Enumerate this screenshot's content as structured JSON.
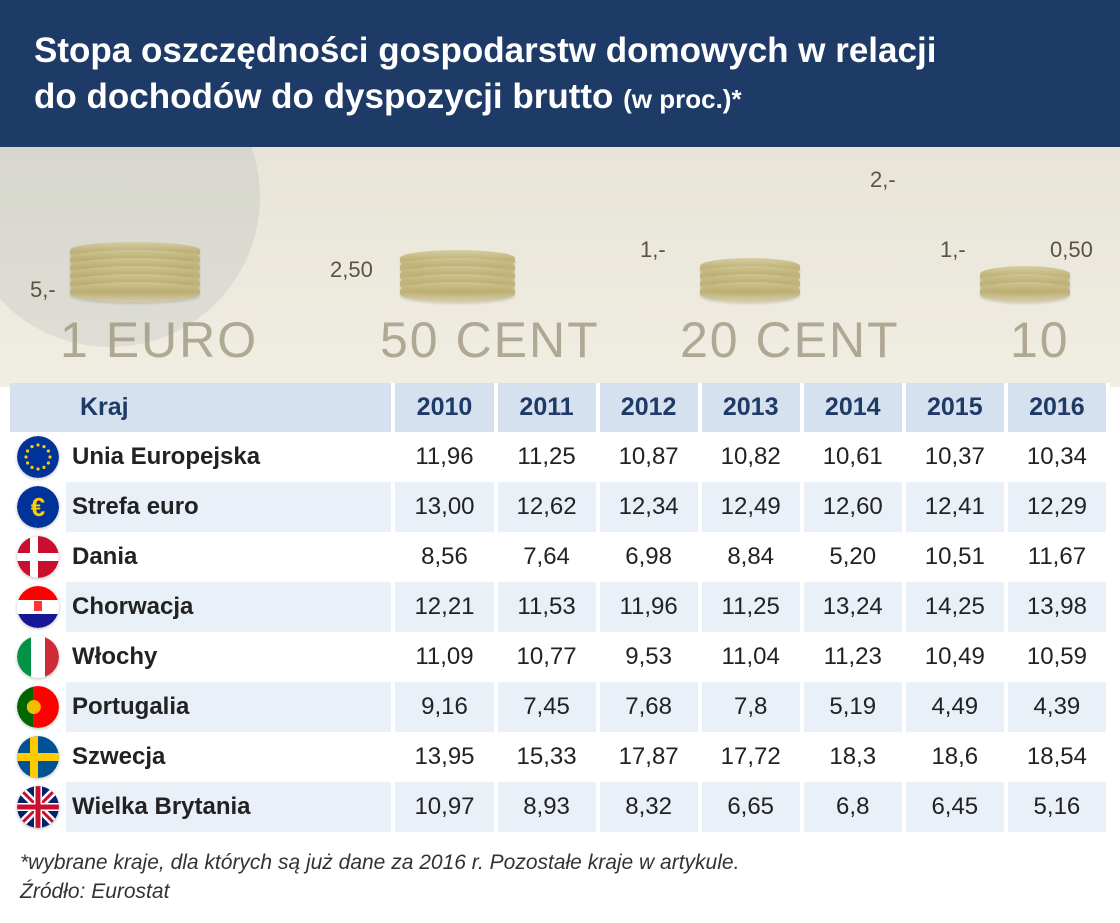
{
  "header": {
    "title_line1": "Stopa oszczędności gospodarstw domowych w relacji",
    "title_line2": "do dochodów do dyspozycji brutto",
    "subtitle": "(w proc.)*",
    "bg_color": "#1e3a66",
    "text_color": "#ffffff",
    "title_fontsize": 35
  },
  "banner": {
    "labels": [
      "1 EURO",
      "50 CENT",
      "20 CENT",
      "10"
    ],
    "scale_marks": [
      "5,-",
      "2,50",
      "1,-",
      "2,-",
      "1,-",
      "0,50"
    ],
    "coin_color": "#d4c99a",
    "bg_color": "#e8e4d8"
  },
  "table": {
    "header_bg": "#d6e1f0",
    "header_color": "#1e3a66",
    "row_even_bg": "#eaf0f8",
    "row_odd_bg": "#ffffff",
    "font_size": 24,
    "columns": [
      "Kraj",
      "2010",
      "2011",
      "2012",
      "2013",
      "2014",
      "2015",
      "2016"
    ],
    "rows": [
      {
        "flag": "eu",
        "name": "Unia Europejska",
        "values": [
          "11,96",
          "11,25",
          "10,87",
          "10,82",
          "10,61",
          "10,37",
          "10,34"
        ]
      },
      {
        "flag": "euro",
        "name": "Strefa euro",
        "values": [
          "13,00",
          "12,62",
          "12,34",
          "12,49",
          "12,60",
          "12,41",
          "12,29"
        ]
      },
      {
        "flag": "dk",
        "name": "Dania",
        "values": [
          "8,56",
          "7,64",
          "6,98",
          "8,84",
          "5,20",
          "10,51",
          "11,67"
        ]
      },
      {
        "flag": "hr",
        "name": "Chorwacja",
        "values": [
          "12,21",
          "11,53",
          "11,96",
          "11,25",
          "13,24",
          "14,25",
          "13,98"
        ]
      },
      {
        "flag": "it",
        "name": "Włochy",
        "values": [
          "11,09",
          "10,77",
          "9,53",
          "11,04",
          "11,23",
          "10,49",
          "10,59"
        ]
      },
      {
        "flag": "pt",
        "name": "Portugalia",
        "values": [
          "9,16",
          "7,45",
          "7,68",
          "7,8",
          "5,19",
          "4,49",
          "4,39"
        ]
      },
      {
        "flag": "se",
        "name": "Szwecja",
        "values": [
          "13,95",
          "15,33",
          "17,87",
          "17,72",
          "18,3",
          "18,6",
          "18,54"
        ]
      },
      {
        "flag": "gb",
        "name": "Wielka Brytania",
        "values": [
          "10,97",
          "8,93",
          "8,32",
          "6,65",
          "6,8",
          "6,45",
          "5,16"
        ]
      }
    ]
  },
  "flags": {
    "eu": {
      "bg": "#003399",
      "type": "eu"
    },
    "euro": {
      "bg": "#003399",
      "type": "euro"
    },
    "dk": {
      "bg": "#c8102e",
      "type": "nordic_cross",
      "cross": "#ffffff"
    },
    "hr": {
      "type": "tricolor_h",
      "c1": "#ff0000",
      "c2": "#ffffff",
      "c3": "#171796",
      "emblem": "#ff0000"
    },
    "it": {
      "type": "tricolor_v",
      "c1": "#009246",
      "c2": "#ffffff",
      "c3": "#ce2b37"
    },
    "pt": {
      "type": "bicolor_v",
      "c1": "#006600",
      "c2": "#ff0000",
      "split": 0.4,
      "emblem": "#ffcc00"
    },
    "se": {
      "bg": "#005293",
      "type": "nordic_cross",
      "cross": "#fecb00"
    },
    "gb": {
      "type": "union_jack"
    }
  },
  "footer": {
    "note": "*wybrane kraje, dla których są już dane za 2016 r. Pozostałe kraje w artykule.",
    "source_label": "Źródło:",
    "source": "Eurostat"
  }
}
